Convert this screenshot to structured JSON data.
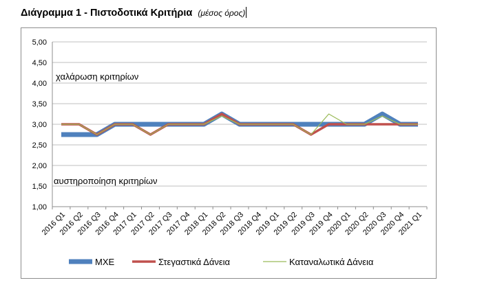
{
  "heading": {
    "title": "Διάγραμμα 1 - Πιστοδοτικά Κριτήρια",
    "subtitle": "(μέσος όρος)"
  },
  "chart_data": {
    "type": "line",
    "categories": [
      "2016 Q1",
      "2016 Q2",
      "2016 Q3",
      "2016 Q4",
      "2017 Q1",
      "2017 Q2",
      "2017 Q3",
      "2017 Q4",
      "2018 Q1",
      "2018 Q2",
      "2018 Q3",
      "2018 Q4",
      "2019 Q1",
      "2019 Q2",
      "2019 Q3",
      "2019 Q4",
      "2020 Q1",
      "2020 Q2",
      "2020 Q3",
      "2020 Q4",
      "2021 Q1"
    ],
    "ylim": [
      1.0,
      5.0
    ],
    "yticks": [
      "1,00",
      "1,50",
      "2,00",
      "2,50",
      "3,00",
      "3,50",
      "4,00",
      "4,50",
      "5,00"
    ],
    "grid": true,
    "legend_position": "bottom",
    "annotations": {
      "top": "χαλάρωση κριτηρίων",
      "bottom": "αυστηροποίηση κριτηρίων"
    },
    "series": [
      {
        "name": "ΜΧΕ",
        "color": "#4f81bd",
        "values": [
          2.75,
          2.75,
          2.75,
          3.0,
          3.0,
          3.0,
          3.0,
          3.0,
          3.0,
          3.25,
          3.0,
          3.0,
          3.0,
          3.0,
          3.0,
          3.0,
          3.0,
          3.0,
          3.25,
          3.0,
          3.0
        ]
      },
      {
        "name": "Στεγαστικά Δάνεια",
        "color": "#c0504d",
        "values": [
          3.0,
          3.0,
          2.75,
          3.0,
          3.0,
          2.75,
          3.0,
          3.0,
          3.0,
          3.25,
          3.0,
          3.0,
          3.0,
          3.0,
          2.75,
          3.0,
          3.0,
          3.0,
          3.0,
          3.0,
          3.0
        ]
      },
      {
        "name": "Καταναλωτικά Δάνεια",
        "color": "#9bbb59",
        "values": [
          3.0,
          3.0,
          2.75,
          3.0,
          3.0,
          2.75,
          3.0,
          3.0,
          3.0,
          3.2,
          3.0,
          3.0,
          3.0,
          3.0,
          2.75,
          3.25,
          3.0,
          3.0,
          3.2,
          3.0,
          3.0
        ]
      }
    ]
  }
}
